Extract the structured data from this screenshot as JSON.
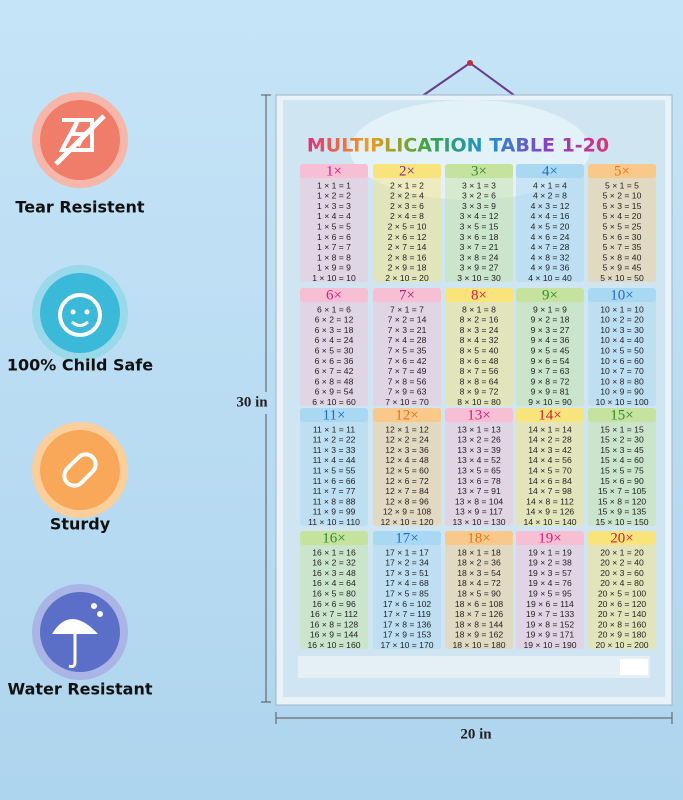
{
  "features": [
    {
      "label": "Tear Resistent"
    },
    {
      "label": "100% Child Safe"
    },
    {
      "label": "Sturdy"
    },
    {
      "label": "Water Resistant"
    }
  ],
  "poster": {
    "title": "MULTIPLICATION TABLE 1-20",
    "height_label": "30 in",
    "width_label": "20 in",
    "tables": [
      {
        "header": "1×",
        "color": "#f7bfd3",
        "ink": "#d81b7a",
        "rows": [
          "1 × 1 = 1",
          "1 × 2 = 2",
          "1 × 3 = 3",
          "1 × 4 = 4",
          "1 × 5 = 5",
          "1 × 6 = 6",
          "1 × 7 = 7",
          "1 × 8 = 8",
          "1 × 9 = 9",
          "1 × 10 = 10"
        ]
      },
      {
        "header": "2×",
        "color": "#f8e47a",
        "ink": "#7b2d8e",
        "rows": [
          "2 × 1 = 2",
          "2 × 2 = 4",
          "2 × 3 = 6",
          "2 × 4 = 8",
          "2 × 5 = 10",
          "2 × 6 = 12",
          "2 × 7 = 14",
          "2 × 8 = 16",
          "2 × 9 = 18",
          "2 × 10 = 20"
        ]
      },
      {
        "header": "3×",
        "color": "#c5e39e",
        "ink": "#2e8b2e",
        "rows": [
          "3 × 1 = 3",
          "3 × 2 = 6",
          "3 × 3 = 9",
          "3 × 4 = 12",
          "3 × 5 = 15",
          "3 × 6 = 18",
          "3 × 7 = 21",
          "3 × 8 = 24",
          "3 × 9 = 27",
          "3 × 10 = 30"
        ]
      },
      {
        "header": "4×",
        "color": "#a9d8f2",
        "ink": "#1e6fc0",
        "rows": [
          "4 × 1 = 4",
          "4 × 2 = 8",
          "4 × 3 = 12",
          "4 × 4 = 16",
          "4 × 5 = 20",
          "4 × 6 = 24",
          "4 × 7 = 28",
          "4 × 8 = 32",
          "4 × 9 = 36",
          "4 × 10 = 40"
        ]
      },
      {
        "header": "5×",
        "color": "#f8c98a",
        "ink": "#e8731a",
        "rows": [
          "5 × 1 = 5",
          "5 × 2 = 10",
          "5 × 3 = 15",
          "5 × 4 = 20",
          "5 × 5 = 25",
          "5 × 6 = 30",
          "5 × 7 = 35",
          "5 × 8 = 40",
          "5 × 9 = 45",
          "5 × 10 = 50"
        ]
      },
      {
        "header": "6×",
        "color": "#f7bfd3",
        "ink": "#d81b7a",
        "rows": [
          "6 × 1 = 6",
          "6 × 2 = 12",
          "6 × 3 = 18",
          "6 × 4 = 24",
          "6 × 5 = 30",
          "6 × 6 = 36",
          "6 × 7 = 42",
          "6 × 8 = 48",
          "6 × 9 = 54",
          "6 × 10 = 60"
        ]
      },
      {
        "header": "7×",
        "color": "#f7bfd3",
        "ink": "#b0217e",
        "rows": [
          "7 × 1 = 7",
          "7 × 2 = 14",
          "7 × 3 = 21",
          "7 × 4 = 28",
          "7 × 5 = 35",
          "7 × 6 = 42",
          "7 × 7 = 49",
          "7 × 8 = 56",
          "7 × 9 = 63",
          "7 × 10 = 70"
        ]
      },
      {
        "header": "8×",
        "color": "#f8e47a",
        "ink": "#d81b3a",
        "rows": [
          "8 × 1 = 8",
          "8 × 2 = 16",
          "8 × 3 = 24",
          "8 × 4 = 32",
          "8 × 5 = 40",
          "8 × 6 = 48",
          "8 × 7 = 56",
          "8 × 8 = 64",
          "8 × 9 = 72",
          "8 × 10 = 80"
        ]
      },
      {
        "header": "9×",
        "color": "#c5e39e",
        "ink": "#2e8b2e",
        "rows": [
          "9 × 1 = 9",
          "9 × 2 = 18",
          "9 × 3 = 27",
          "9 × 4 = 36",
          "9 × 5 = 45",
          "9 × 6 = 54",
          "9 × 7 = 63",
          "9 × 8 = 72",
          "9 × 9 = 81",
          "9 × 10 = 90"
        ]
      },
      {
        "header": "10×",
        "color": "#a9d8f2",
        "ink": "#1e6fc0",
        "rows": [
          "10 × 1 = 10",
          "10 × 2 = 20",
          "10 × 3 = 30",
          "10 × 4 = 40",
          "10 × 5 = 50",
          "10 × 6 = 60",
          "10 × 7 = 70",
          "10 × 8 = 80",
          "10 × 9 = 90",
          "10 × 10 = 100"
        ]
      },
      {
        "header": "11×",
        "color": "#a9d8f2",
        "ink": "#1e6fc0",
        "rows": [
          "11 × 1 = 11",
          "11 × 2 = 22",
          "11 × 3 = 33",
          "11 × 4 = 44",
          "11 × 5 = 55",
          "11 × 6 = 66",
          "11 × 7 = 77",
          "11 × 8 = 88",
          "11 × 9 = 99",
          "11 × 10 = 110"
        ]
      },
      {
        "header": "12×",
        "color": "#f8c98a",
        "ink": "#e8731a",
        "rows": [
          "12 × 1 = 12",
          "12 × 2 = 24",
          "12 × 3 = 36",
          "12 × 4 = 48",
          "12 × 5 = 60",
          "12 × 6 = 72",
          "12 × 7 = 84",
          "12 × 8 = 96",
          "12 × 9 = 108",
          "12 × 10 = 120"
        ]
      },
      {
        "header": "13×",
        "color": "#f7bfd3",
        "ink": "#d81b7a",
        "rows": [
          "13 × 1 = 13",
          "13 × 2 = 26",
          "13 × 3 = 39",
          "13 × 4 = 52",
          "13 × 5 = 65",
          "13 × 6 = 78",
          "13 × 7 = 91",
          "13 × 8 = 104",
          "13 × 9 = 117",
          "13 × 10 = 130"
        ]
      },
      {
        "header": "14×",
        "color": "#f8e47a",
        "ink": "#d81b3a",
        "rows": [
          "14 × 1 = 14",
          "14 × 2 = 28",
          "14 × 3 = 42",
          "14 × 4 = 56",
          "14 × 5 = 70",
          "14 × 6 = 84",
          "14 × 7 = 98",
          "14 × 8 = 112",
          "14 × 9 = 126",
          "14 × 10 = 140"
        ]
      },
      {
        "header": "15×",
        "color": "#c5e39e",
        "ink": "#2e8b2e",
        "rows": [
          "15 × 1 = 15",
          "15 × 2 = 30",
          "15 × 3 = 45",
          "15 × 4 = 60",
          "15 × 5 = 75",
          "15 × 6 = 90",
          "15 × 7 = 105",
          "15 × 8 = 120",
          "15 × 9 = 135",
          "15 × 10 = 150"
        ]
      },
      {
        "header": "16×",
        "color": "#c5e39e",
        "ink": "#2e8b2e",
        "rows": [
          "16 × 1 = 16",
          "16 × 2 = 32",
          "16 × 3 = 48",
          "16 × 4 = 64",
          "16 × 5 = 80",
          "16 × 6 = 96",
          "16 × 7 = 112",
          "16 × 8 = 128",
          "16 × 9 = 144",
          "16 × 10 = 160"
        ]
      },
      {
        "header": "17×",
        "color": "#a9d8f2",
        "ink": "#1e6fc0",
        "rows": [
          "17 × 1 = 17",
          "17 × 2 = 34",
          "17 × 3 = 51",
          "17 × 4 = 68",
          "17 × 5 = 85",
          "17 × 6 = 102",
          "17 × 7 = 119",
          "17 × 8 = 136",
          "17 × 9 = 153",
          "17 × 10 = 170"
        ]
      },
      {
        "header": "18×",
        "color": "#f8c98a",
        "ink": "#e8731a",
        "rows": [
          "18 × 1 = 18",
          "18 × 2 = 36",
          "18 × 3 = 54",
          "18 × 4 = 72",
          "18 × 5 = 90",
          "18 × 6 = 108",
          "18 × 7 = 126",
          "18 × 8 = 144",
          "18 × 9 = 162",
          "18 × 10 = 180"
        ]
      },
      {
        "header": "19×",
        "color": "#f7bfd3",
        "ink": "#d81b7a",
        "rows": [
          "19 × 1 = 19",
          "19 × 2 = 38",
          "19 × 3 = 57",
          "19 × 4 = 76",
          "19 × 5 = 95",
          "19 × 6 = 114",
          "19 × 7 = 133",
          "19 × 8 = 152",
          "19 × 9 = 171",
          "19 × 10 = 190"
        ]
      },
      {
        "header": "20×",
        "color": "#f8e47a",
        "ink": "#d81b3a",
        "rows": [
          "20 × 1 = 20",
          "20 × 2 = 40",
          "20 × 3 = 60",
          "20 × 4 = 80",
          "20 × 5 = 100",
          "20 × 6 = 120",
          "20 × 7 = 140",
          "20 × 8 = 160",
          "20 × 9 = 180",
          "20 × 10 = 200"
        ]
      }
    ]
  }
}
